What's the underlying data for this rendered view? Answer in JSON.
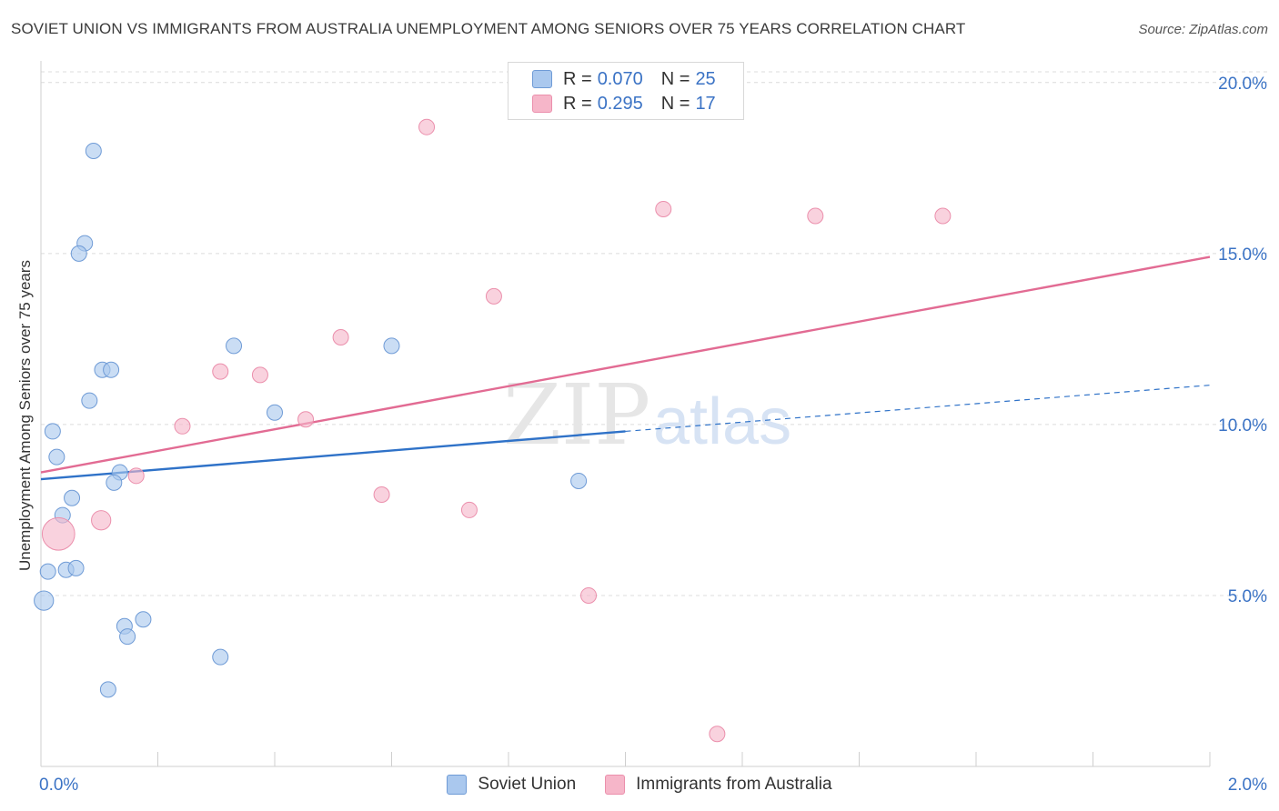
{
  "title": "SOVIET UNION VS IMMIGRANTS FROM AUSTRALIA UNEMPLOYMENT AMONG SENIORS OVER 75 YEARS CORRELATION CHART",
  "source": "Source: ZipAtlas.com",
  "watermark": {
    "zip": "ZIP",
    "atlas": "atlas"
  },
  "legend": {
    "rows": [
      {
        "r_label": "R =",
        "r_value": "0.070",
        "n_label": "N =",
        "n_value": "25",
        "color": "#aac8ee"
      },
      {
        "r_label": "R =",
        "r_value": "0.295",
        "n_label": "N =",
        "n_value": "17",
        "color": "#f6b6c9"
      }
    ]
  },
  "bottom_legend": [
    {
      "label": "Soviet Union",
      "color": "#aac8ee"
    },
    {
      "label": "Immigrants from Australia",
      "color": "#f6b6c9"
    }
  ],
  "chart_data": {
    "type": "scatter",
    "title": "SOVIET UNION VS IMMIGRANTS FROM AUSTRALIA UNEMPLOYMENT AMONG SENIORS OVER 75 YEARS CORRELATION CHART",
    "xlabel": "",
    "ylabel": "Unemployment Among Seniors over 75 years",
    "xlim": [
      0,
      2.0
    ],
    "ylim": [
      0,
      20.5
    ],
    "x_tick_labels": [
      "0.0%",
      "2.0%"
    ],
    "y_ticks": [
      5,
      10,
      15,
      20
    ],
    "y_tick_labels": [
      "5.0%",
      "10.0%",
      "15.0%",
      "20.0%"
    ],
    "grid": "horizontal dashed",
    "series": [
      {
        "name": "Soviet Union",
        "color": "#aac8ee",
        "stroke": "#6f9bd6",
        "line_color": "#2f72c8",
        "trend": {
          "x0": 0.0,
          "y0": 8.4,
          "x1": 1.0,
          "y1": 9.8,
          "dash_to_x": 2.0,
          "dash_to_y": 11.15
        },
        "points": [
          {
            "x": 0.09,
            "y": 18.0,
            "s": 1
          },
          {
            "x": 0.075,
            "y": 15.3,
            "s": 1
          },
          {
            "x": 0.065,
            "y": 15.0,
            "s": 1
          },
          {
            "x": 0.33,
            "y": 12.3,
            "s": 1
          },
          {
            "x": 0.6,
            "y": 12.3,
            "s": 1
          },
          {
            "x": 0.105,
            "y": 11.6,
            "s": 1
          },
          {
            "x": 0.12,
            "y": 11.6,
            "s": 1
          },
          {
            "x": 0.083,
            "y": 10.7,
            "s": 1
          },
          {
            "x": 0.4,
            "y": 10.35,
            "s": 1
          },
          {
            "x": 0.02,
            "y": 9.8,
            "s": 1
          },
          {
            "x": 0.027,
            "y": 9.05,
            "s": 1
          },
          {
            "x": 0.135,
            "y": 8.6,
            "s": 1
          },
          {
            "x": 0.125,
            "y": 8.3,
            "s": 1
          },
          {
            "x": 0.92,
            "y": 8.35,
            "s": 1
          },
          {
            "x": 0.053,
            "y": 7.85,
            "s": 1
          },
          {
            "x": 0.037,
            "y": 7.35,
            "s": 1
          },
          {
            "x": 0.012,
            "y": 5.7,
            "s": 1
          },
          {
            "x": 0.043,
            "y": 5.75,
            "s": 1
          },
          {
            "x": 0.06,
            "y": 5.8,
            "s": 1
          },
          {
            "x": 0.005,
            "y": 4.85,
            "s": 1.25
          },
          {
            "x": 0.175,
            "y": 4.3,
            "s": 1
          },
          {
            "x": 0.143,
            "y": 4.1,
            "s": 1
          },
          {
            "x": 0.148,
            "y": 3.8,
            "s": 1
          },
          {
            "x": 0.307,
            "y": 3.2,
            "s": 1
          },
          {
            "x": 0.115,
            "y": 2.25,
            "s": 1
          }
        ]
      },
      {
        "name": "Immigrants from Australia",
        "color": "#f6b6c9",
        "stroke": "#eb8fac",
        "line_color": "#e26b93",
        "trend": {
          "x0": 0.0,
          "y0": 8.6,
          "x1": 2.0,
          "y1": 14.9
        },
        "points": [
          {
            "x": 0.66,
            "y": 18.7,
            "s": 1
          },
          {
            "x": 1.065,
            "y": 16.3,
            "s": 1
          },
          {
            "x": 1.325,
            "y": 16.1,
            "s": 1
          },
          {
            "x": 1.543,
            "y": 16.1,
            "s": 1
          },
          {
            "x": 0.775,
            "y": 13.75,
            "s": 1
          },
          {
            "x": 0.513,
            "y": 12.55,
            "s": 1
          },
          {
            "x": 0.307,
            "y": 11.55,
            "s": 1
          },
          {
            "x": 0.375,
            "y": 11.45,
            "s": 1
          },
          {
            "x": 0.453,
            "y": 10.15,
            "s": 1
          },
          {
            "x": 0.242,
            "y": 9.95,
            "s": 1
          },
          {
            "x": 0.163,
            "y": 8.5,
            "s": 1
          },
          {
            "x": 0.583,
            "y": 7.95,
            "s": 1
          },
          {
            "x": 0.733,
            "y": 7.5,
            "s": 1
          },
          {
            "x": 0.103,
            "y": 7.2,
            "s": 1.25
          },
          {
            "x": 0.03,
            "y": 6.8,
            "s": 2.1
          },
          {
            "x": 0.937,
            "y": 5.0,
            "s": 1
          },
          {
            "x": 1.157,
            "y": 0.95,
            "s": 1
          }
        ]
      }
    ]
  }
}
